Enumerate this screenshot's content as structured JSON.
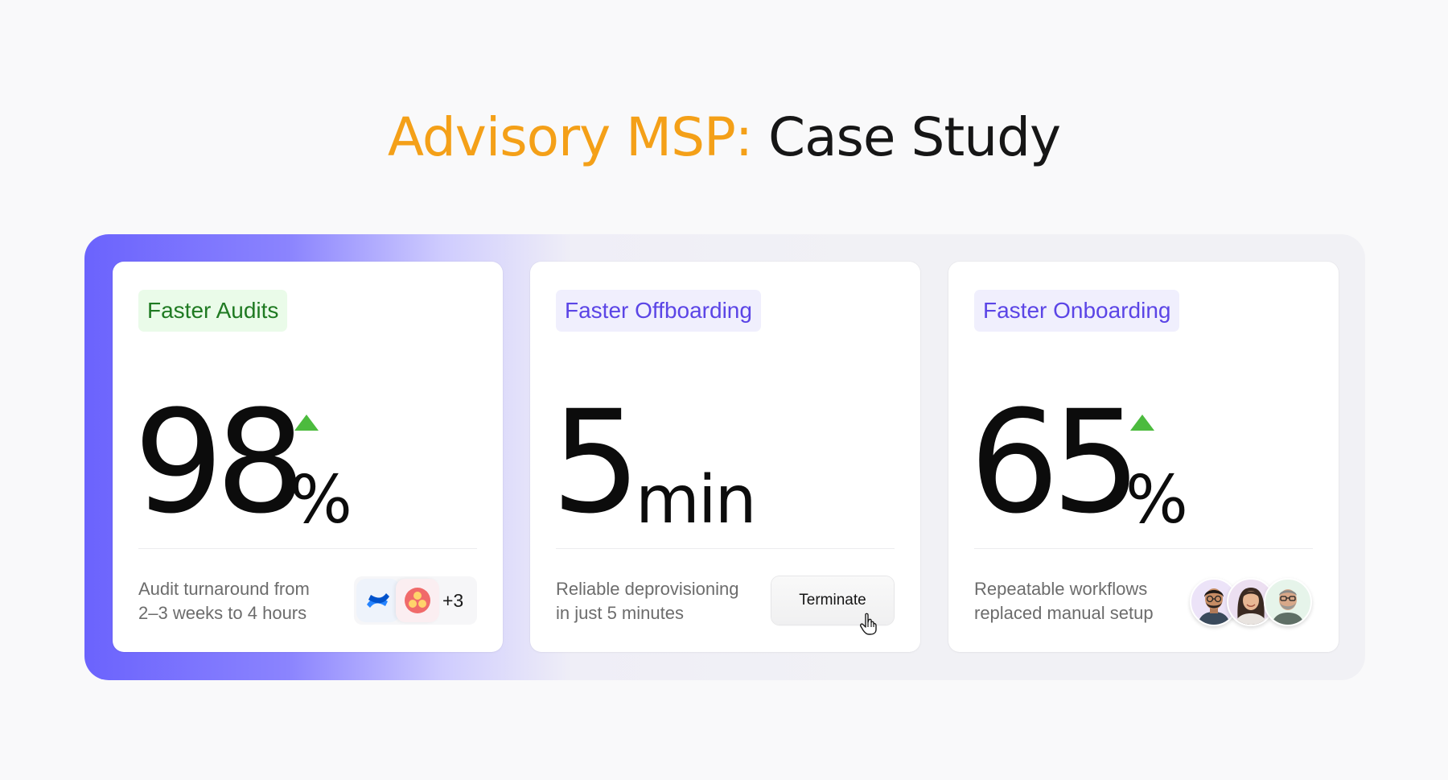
{
  "header": {
    "title_accent": "Advisory MSP:",
    "title_rest": "Case Study"
  },
  "colors": {
    "accent": "#f4a018",
    "panel_gradient_start": "#6b63fd",
    "green_tag_text": "#1f7a22",
    "purple_tag_text": "#5b45e6",
    "up_arrow": "#4cbb3e"
  },
  "cards": [
    {
      "tag": "Faster Audits",
      "value": "98",
      "unit": "%",
      "trend": "up-arrow-icon",
      "desc_line1": "Audit turnaround from",
      "desc_line2": "2–3 weeks to 4 hours",
      "apps": [
        "confluence-icon",
        "asana-icon"
      ],
      "apps_more": "+3"
    },
    {
      "tag": "Faster Offboarding",
      "value": "5",
      "unit": "min",
      "desc_line1": "Reliable deprovisioning",
      "desc_line2": "in just 5 minutes",
      "button_label": "Terminate"
    },
    {
      "tag": "Faster Onboarding",
      "value": "65",
      "unit": "%",
      "trend": "up-arrow-icon",
      "desc_line1": "Repeatable workflows",
      "desc_line2": "replaced manual setup",
      "avatars": [
        "avatar-man-glasses",
        "avatar-woman",
        "avatar-man-beard"
      ]
    }
  ]
}
